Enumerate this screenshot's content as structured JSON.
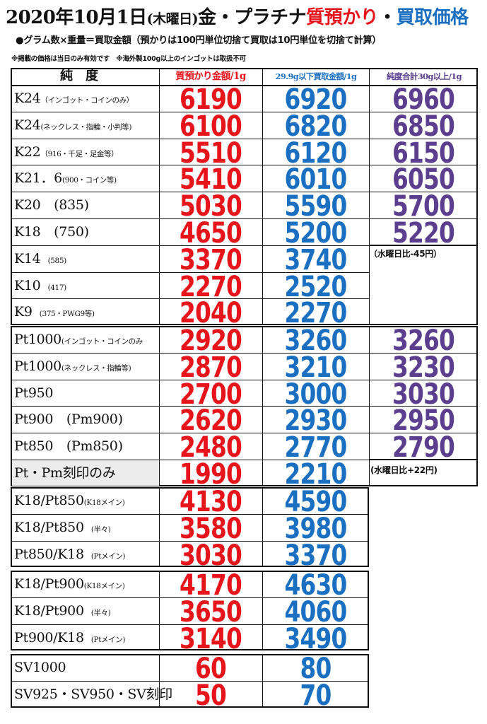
{
  "header": {
    "date": "2020年10月1日",
    "weekday": "(木曜日)",
    "title_mid": "金・プラチナ",
    "title_red": "質預かり",
    "title_dot": "・",
    "title_blue": "買取価格"
  },
  "subtitle": "●グラム数×重量＝買取金額（預かりは100円単位切捨て買取は10円単位を切捨て計算）",
  "note": "※掲載の価格は当日のみ有効です　※海外製100g以上のインゴットは取扱不可",
  "columns": {
    "purity": "純度",
    "pawn": "質預かり金額/1g",
    "buy": "29.9g以下買取金額/1g",
    "bulk": "純度合計30g以上/1g"
  },
  "colors": {
    "pawn": "#e8141c",
    "buy": "#1a6fc0",
    "bulk": "#5b3f8e"
  },
  "gold": [
    {
      "main": "K24",
      "sub": "（インゴット・コインのみ）",
      "pawn": "6190",
      "buy": "6920",
      "bulk": "6960"
    },
    {
      "main": "K24",
      "sub": "(ネックレス・指輪・小判等)",
      "pawn": "6100",
      "buy": "6820",
      "bulk": "6850"
    },
    {
      "main": "K22",
      "sub": "（916・千足・足金等）",
      "pawn": "5510",
      "buy": "6120",
      "bulk": "6150"
    },
    {
      "main": "K21．6",
      "sub": "(900・コイン等)",
      "pawn": "5410",
      "buy": "6010",
      "bulk": "6050"
    },
    {
      "main": "K20　(835)",
      "sub": "",
      "pawn": "5030",
      "buy": "5590",
      "bulk": "5700"
    },
    {
      "main": "K18　(750)",
      "sub": "",
      "pawn": "4650",
      "buy": "5200",
      "bulk": "5220"
    },
    {
      "main": "K14",
      "sub": "　(585)",
      "pawn": "3370",
      "buy": "3740",
      "bulk": ""
    },
    {
      "main": "K10",
      "sub": "　(417)",
      "pawn": "2270",
      "buy": "2520",
      "bulk": ""
    },
    {
      "main": "K9",
      "sub": "　(375・PWG9等)",
      "pawn": "2040",
      "buy": "2270",
      "bulk": ""
    }
  ],
  "gold_diff": "（水曜日比-45円）",
  "platinum": [
    {
      "main": "Pt1000",
      "sub": "(インゴット・コインのみ",
      "pawn": "2920",
      "buy": "3260",
      "bulk": "3260"
    },
    {
      "main": "Pt1000",
      "sub": "(ネックレス・指輪等)",
      "pawn": "2870",
      "buy": "3210",
      "bulk": "3230"
    },
    {
      "main": "Pt950",
      "sub": "",
      "pawn": "2700",
      "buy": "3000",
      "bulk": "3030"
    },
    {
      "main": "Pt900　(Pm900)",
      "sub": "",
      "pawn": "2620",
      "buy": "2930",
      "bulk": "2950"
    },
    {
      "main": "Pt850　(Pm850)",
      "sub": "",
      "pawn": "2480",
      "buy": "2770",
      "bulk": "2790"
    },
    {
      "main": "Pt・Pm刻印のみ",
      "sub": "",
      "pawn": "1990",
      "buy": "2210",
      "bulk": ""
    }
  ],
  "platinum_diff": "(水曜日比+22円)",
  "combo850": [
    {
      "main": "K18/Pt850",
      "sub": "(K18メイン)",
      "pawn": "4130",
      "buy": "4590"
    },
    {
      "main": "K18/Pt850",
      "sub": "　(半々)",
      "pawn": "3580",
      "buy": "3980"
    },
    {
      "main": "Pt850/K18",
      "sub": "　(Ptメイン)",
      "pawn": "3030",
      "buy": "3370"
    }
  ],
  "combo900": [
    {
      "main": "K18/Pt900",
      "sub": "(K18メイン)",
      "pawn": "4170",
      "buy": "4630"
    },
    {
      "main": "K18/Pt900",
      "sub": "　(半々)",
      "pawn": "3650",
      "buy": "4060"
    },
    {
      "main": "Pt900/K18",
      "sub": "　(Ptメイン)",
      "pawn": "3140",
      "buy": "3490"
    }
  ],
  "silver": [
    {
      "main": "SV1000",
      "sub": "",
      "pawn": "60",
      "buy": "80"
    },
    {
      "main": "SV925・SV950・SV刻印",
      "sub": "",
      "pawn": "50",
      "buy": "70"
    }
  ]
}
